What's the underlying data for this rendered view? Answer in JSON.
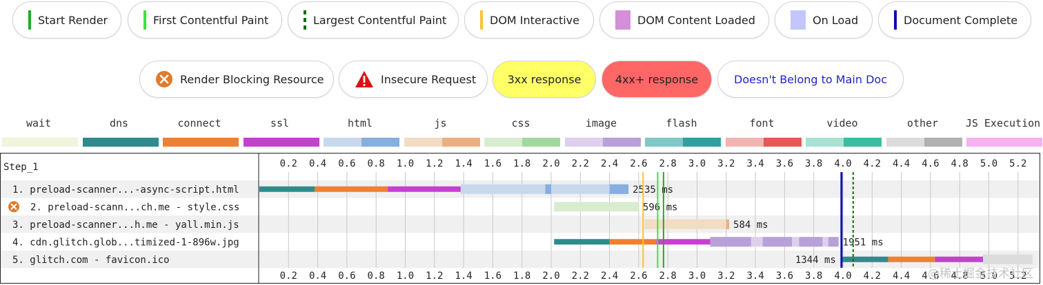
{
  "milestones": [
    {
      "label": "Start Render",
      "color": "#22aa22",
      "style": "solid"
    },
    {
      "label": "First Contentful Paint",
      "color": "#39e639",
      "style": "solid"
    },
    {
      "label": "Largest Contentful Paint",
      "color": "#0b6e0b",
      "style": "dashed"
    },
    {
      "label": "DOM Interactive",
      "color": "#ffc233",
      "style": "solid"
    },
    {
      "label": "DOM Content Loaded",
      "color": "#d48fd9",
      "style": "block"
    },
    {
      "label": "On Load",
      "color": "#c2c6fa",
      "style": "block"
    },
    {
      "label": "Document Complete",
      "color": "#0a0ab8",
      "style": "solid"
    }
  ],
  "indicators": [
    {
      "label": "Render Blocking Resource",
      "icon": "render-blocking-icon"
    },
    {
      "label": "Insecure Request",
      "icon": "warning-icon"
    },
    {
      "label": "3xx response",
      "bg": "#ffff66"
    },
    {
      "label": "4xx+ response",
      "bg": "#ff6666"
    },
    {
      "label": "Doesn't Belong to Main Doc",
      "color": "#2222cc"
    }
  ],
  "request_types": [
    {
      "label": "wait",
      "light": "#f0f5dc",
      "dark": "#f0f5dc"
    },
    {
      "label": "dns",
      "light": "#2e8b8b",
      "dark": "#2e8b8b"
    },
    {
      "label": "connect",
      "light": "#f08030",
      "dark": "#f08030"
    },
    {
      "label": "ssl",
      "light": "#c640d0",
      "dark": "#c640d0"
    },
    {
      "label": "html",
      "light": "#c8d8ee",
      "dark": "#86aee0"
    },
    {
      "label": "js",
      "light": "#f2dcc4",
      "dark": "#eab080"
    },
    {
      "label": "css",
      "light": "#d8ecd0",
      "dark": "#a2d8a0"
    },
    {
      "label": "image",
      "light": "#dcd0ec",
      "dark": "#b8a0d8"
    },
    {
      "label": "flash",
      "light": "#80c8c8",
      "dark": "#2ea0a0"
    },
    {
      "label": "font",
      "light": "#f2b4b0",
      "dark": "#e45858"
    },
    {
      "label": "video",
      "light": "#a8e2d2",
      "dark": "#3cbca0"
    },
    {
      "label": "other",
      "light": "#dcdcdc",
      "dark": "#b0b0b0"
    },
    {
      "label": "JS Execution",
      "light": "#f8b0f0",
      "dark": "#f8b0f0"
    }
  ],
  "chart_data": {
    "type": "waterfall",
    "step_label": "Step_1",
    "x_unit": "s",
    "xlim": [
      0,
      5.3
    ],
    "ticks": [
      "0.2",
      "0.4",
      "0.6",
      "0.8",
      "1.0",
      "1.2",
      "1.4",
      "1.6",
      "1.8",
      "2.0",
      "2.2",
      "2.4",
      "2.6",
      "2.8",
      "3.0",
      "3.2",
      "3.4",
      "3.6",
      "3.8",
      "4.0",
      "4.2",
      "4.4",
      "4.6",
      "4.8",
      "5.0",
      "5.2"
    ],
    "markers": [
      {
        "name": "Start Render",
        "time": 2.77,
        "color": "#22aa22",
        "style": "solid"
      },
      {
        "name": "First Contentful Paint",
        "time": 2.73,
        "color": "#39e639",
        "style": "solid"
      },
      {
        "name": "Largest Contentful Paint",
        "time": 4.07,
        "color": "#0b6e0b",
        "style": "dashed"
      },
      {
        "name": "DOM Interactive",
        "time": 2.63,
        "color": "#ffc233",
        "style": "solid"
      },
      {
        "name": "Document Complete",
        "time": 3.99,
        "color": "#0a0ab8",
        "style": "solid"
      }
    ],
    "requests": [
      {
        "label": "1. preload-scanner...-async-script.html",
        "duration_label": "2535 ms",
        "blocking": false,
        "type": "html",
        "phases": [
          {
            "kind": "dns",
            "start": 0.0,
            "end": 0.38
          },
          {
            "kind": "connect",
            "start": 0.38,
            "end": 0.88
          },
          {
            "kind": "ssl",
            "start": 0.88,
            "end": 1.38
          },
          {
            "kind": "wait",
            "start": 1.38,
            "end": 1.96
          },
          {
            "kind": "download",
            "start": 1.96,
            "end": 2.52
          },
          {
            "kind": "download",
            "start": 1.38,
            "end": 1.38
          }
        ],
        "chunks": [
          [
            1.96,
            2.0
          ],
          [
            2.4,
            2.53
          ]
        ]
      },
      {
        "label": "2. preload-scann...ch.me - style.css",
        "duration_label": "596 ms",
        "blocking": true,
        "type": "css",
        "phases": [
          {
            "kind": "wait",
            "start": 2.02,
            "end": 2.6
          }
        ],
        "chunks": []
      },
      {
        "label": "3. preload-scanner...h.me - yall.min.js",
        "duration_label": "584 ms",
        "blocking": false,
        "type": "js",
        "phases": [
          {
            "kind": "wait",
            "start": 2.64,
            "end": 3.2
          }
        ],
        "chunks": [
          [
            3.2,
            3.22
          ]
        ]
      },
      {
        "label": "4. cdn.glitch.glob...timized-1-896w.jpg",
        "duration_label": "1951 ms",
        "blocking": false,
        "type": "image",
        "phases": [
          {
            "kind": "dns",
            "start": 2.02,
            "end": 2.4
          },
          {
            "kind": "connect",
            "start": 2.4,
            "end": 2.72
          },
          {
            "kind": "ssl",
            "start": 2.72,
            "end": 3.09
          },
          {
            "kind": "wait",
            "start": 3.09,
            "end": 3.97
          }
        ],
        "chunks": [
          [
            3.09,
            3.37
          ],
          [
            3.45,
            3.65
          ],
          [
            3.7,
            3.86
          ],
          [
            3.9,
            3.97
          ]
        ]
      },
      {
        "label": "5. glitch.com - favicon.ico",
        "duration_label": "1344 ms",
        "blocking": false,
        "type": "other",
        "label_before_bar": true,
        "phases": [
          {
            "kind": "dns",
            "start": 3.99,
            "end": 4.31
          },
          {
            "kind": "connect",
            "start": 4.31,
            "end": 4.63
          },
          {
            "kind": "ssl",
            "start": 4.63,
            "end": 4.96
          },
          {
            "kind": "wait",
            "start": 4.96,
            "end": 5.3
          }
        ],
        "chunks": []
      }
    ]
  },
  "watermark": "@稀土掘金技术社区"
}
